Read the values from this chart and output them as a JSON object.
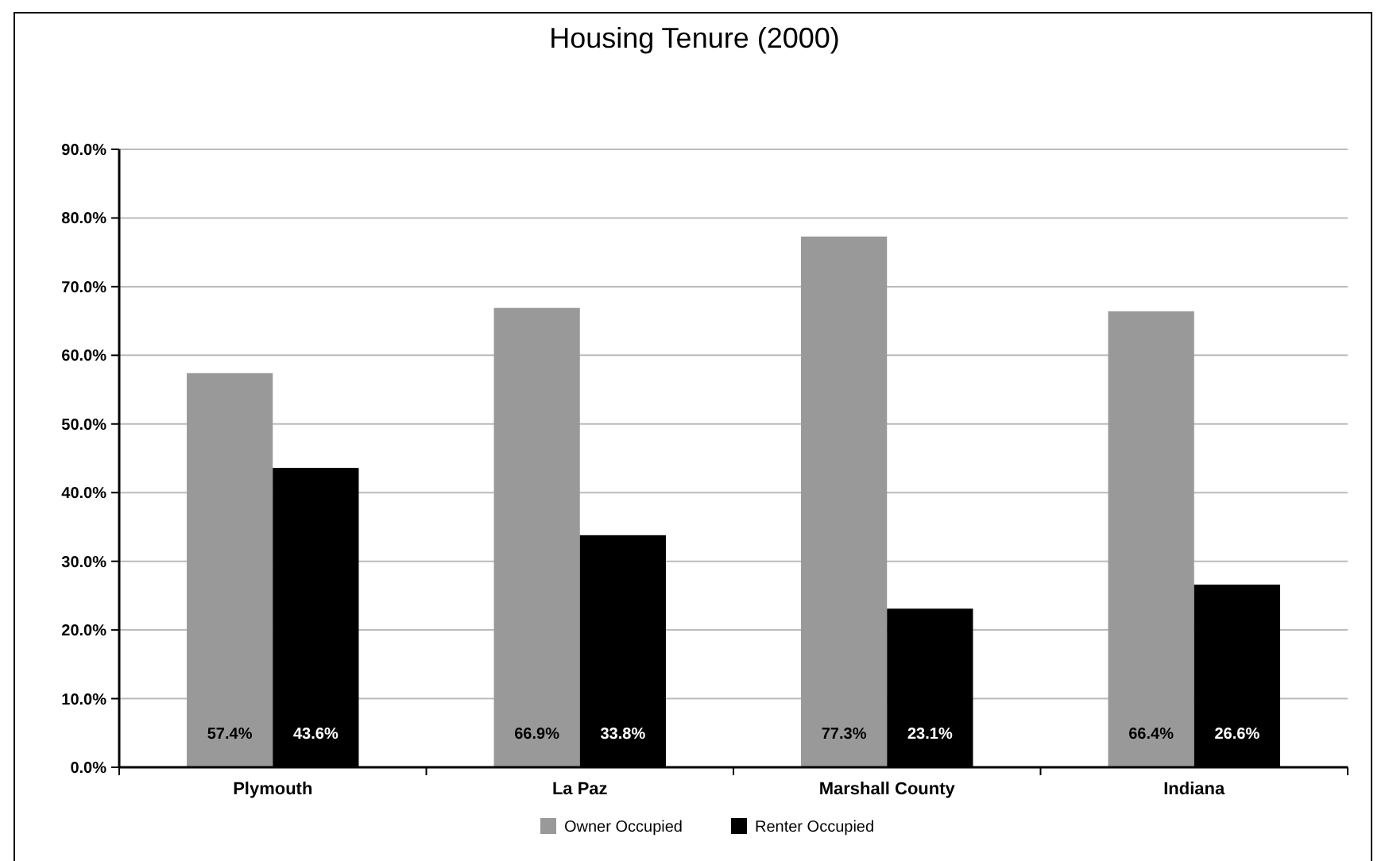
{
  "chart_data": {
    "type": "bar",
    "title": "Housing Tenure (2000)",
    "categories": [
      "Plymouth",
      "La Paz",
      "Marshall County",
      "Indiana"
    ],
    "series": [
      {
        "name": "Owner Occupied",
        "color": "#999999",
        "values": [
          57.4,
          66.9,
          77.3,
          66.4
        ],
        "value_labels": [
          "57.4%",
          "66.9%",
          "77.3%",
          "66.4%"
        ]
      },
      {
        "name": "Renter Occupied",
        "color": "#000000",
        "values": [
          43.6,
          33.8,
          23.1,
          26.6
        ],
        "value_labels": [
          "43.6%",
          "33.8%",
          "23.1%",
          "26.6%"
        ]
      }
    ],
    "ylim": [
      0,
      90
    ],
    "yticks": [
      {
        "value": 0,
        "label": "0.0%"
      },
      {
        "value": 10,
        "label": "10.0%"
      },
      {
        "value": 20,
        "label": "20.0%"
      },
      {
        "value": 30,
        "label": "30.0%"
      },
      {
        "value": 40,
        "label": "40.0%"
      },
      {
        "value": 50,
        "label": "50.0%"
      },
      {
        "value": 60,
        "label": "60.0%"
      },
      {
        "value": 70,
        "label": "70.0%"
      },
      {
        "value": 80,
        "label": "80.0%"
      },
      {
        "value": 90,
        "label": "90.0%"
      }
    ],
    "grid": "y",
    "legend": "bottom"
  }
}
